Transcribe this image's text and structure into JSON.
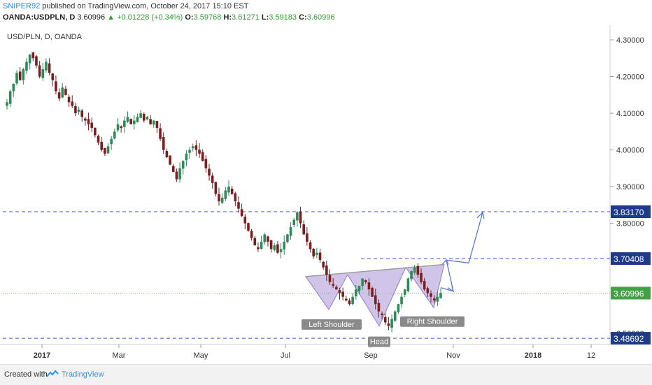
{
  "header": {
    "author": "SNIPER92",
    "published": "published on TradingView.com, October 24, 2017 15:10 EST",
    "symbol": "OANDA:USDPLN, D",
    "last": "3.60996",
    "change": "+0.01228 (+0.34%)",
    "o_label": "O:",
    "o": "3.59768",
    "h_label": "H:",
    "h": "3.61271",
    "l_label": "L:",
    "l": "3.59183",
    "c_label": "C:",
    "c": "3.60996"
  },
  "footer": {
    "created_with": "Created with",
    "brand": "TradingView"
  },
  "colors": {
    "up": "#26a69a",
    "down": "#ef5350",
    "candle_up": "#2e8b57",
    "candle_down": "#7a1f1f",
    "dashed": "#3f51d6",
    "pattern_fill": "#b39ddb",
    "arrow": "#5c7ac9",
    "price_tag": "#1e3a8a",
    "current_tag": "#43a047"
  },
  "chart_data": {
    "type": "candlestick",
    "title": "USD/PLN, D, OANDA",
    "ylim": [
      3.47,
      4.34
    ],
    "yticks": [
      "4.30000",
      "4.20000",
      "4.10000",
      "4.00000",
      "3.90000",
      "3.80000",
      "3.50000"
    ],
    "xticks": [
      "2017",
      "Mar",
      "May",
      "Jul",
      "Sep",
      "Nov",
      "2018",
      "12"
    ],
    "levels": [
      {
        "value": 3.8317,
        "label": "3.83170",
        "style": "dashed"
      },
      {
        "value": 3.70408,
        "label": "3.70408",
        "style": "dashed"
      },
      {
        "value": 3.60996,
        "label": "3.60996",
        "style": "dotted"
      },
      {
        "value": 3.48692,
        "label": "3.48692",
        "style": "dashed"
      }
    ],
    "annotations": [
      {
        "text": "Left Shoulder"
      },
      {
        "text": "Head"
      },
      {
        "text": "Right Shoulder"
      }
    ],
    "closes": [
      4.13,
      4.16,
      4.18,
      4.21,
      4.19,
      4.22,
      4.24,
      4.26,
      4.25,
      4.23,
      4.2,
      4.22,
      4.24,
      4.21,
      4.19,
      4.16,
      4.14,
      4.17,
      4.15,
      4.13,
      4.12,
      4.1,
      4.11,
      4.09,
      4.08,
      4.07,
      4.06,
      4.04,
      4.02,
      4.0,
      3.99,
      4.01,
      4.03,
      4.05,
      4.07,
      4.06,
      4.08,
      4.09,
      4.07,
      4.08,
      4.09,
      4.1,
      4.08,
      4.09,
      4.07,
      4.08,
      4.06,
      4.03,
      4.0,
      3.98,
      3.96,
      3.94,
      3.92,
      3.95,
      3.97,
      3.99,
      4.0,
      4.01,
      4.0,
      3.99,
      3.97,
      3.95,
      3.93,
      3.91,
      3.88,
      3.86,
      3.87,
      3.89,
      3.9,
      3.88,
      3.86,
      3.84,
      3.82,
      3.8,
      3.78,
      3.76,
      3.74,
      3.73,
      3.75,
      3.77,
      3.75,
      3.73,
      3.74,
      3.72,
      3.73,
      3.75,
      3.77,
      3.79,
      3.81,
      3.83,
      3.8,
      3.77,
      3.75,
      3.73,
      3.71,
      3.72,
      3.7,
      3.68,
      3.66,
      3.64,
      3.63,
      3.62,
      3.61,
      3.6,
      3.59,
      3.58,
      3.6,
      3.62,
      3.63,
      3.65,
      3.64,
      3.62,
      3.6,
      3.58,
      3.56,
      3.55,
      3.53,
      3.52,
      3.54,
      3.56,
      3.58,
      3.6,
      3.62,
      3.65,
      3.67,
      3.68,
      3.66,
      3.64,
      3.62,
      3.61,
      3.6,
      3.59,
      3.6,
      3.61
    ]
  }
}
